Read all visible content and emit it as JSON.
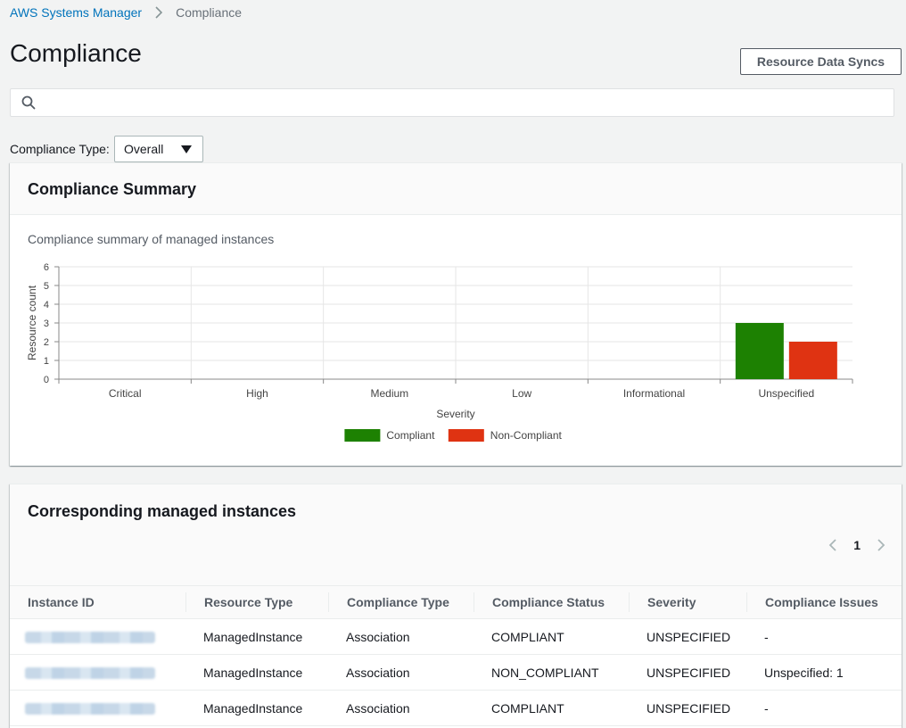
{
  "breadcrumb": {
    "root": "AWS Systems Manager",
    "current": "Compliance"
  },
  "page": {
    "title": "Compliance",
    "resource_data_syncs_label": "Resource Data Syncs"
  },
  "search": {
    "placeholder": "",
    "value": ""
  },
  "filter": {
    "label": "Compliance Type:",
    "selected": "Overall"
  },
  "summary": {
    "title": "Compliance Summary",
    "caption": "Compliance summary of managed instances"
  },
  "chart_data": {
    "type": "bar",
    "title": "",
    "xlabel": "Severity",
    "ylabel": "Resource count",
    "ylim": [
      0,
      6
    ],
    "yticks": [
      0,
      1,
      2,
      3,
      4,
      5,
      6
    ],
    "categories": [
      "Critical",
      "High",
      "Medium",
      "Low",
      "Informational",
      "Unspecified"
    ],
    "series": [
      {
        "name": "Compliant",
        "color": "#1d8102",
        "values": [
          0,
          0,
          0,
          0,
          0,
          3
        ]
      },
      {
        "name": "Non-Compliant",
        "color": "#df3312",
        "values": [
          0,
          0,
          0,
          0,
          0,
          2
        ]
      }
    ],
    "grid": true,
    "legend_position": "bottom-center"
  },
  "instances": {
    "title": "Corresponding managed instances",
    "page": "1",
    "columns": [
      "Instance ID",
      "Resource Type",
      "Compliance Type",
      "Compliance Status",
      "Severity",
      "Compliance Issues"
    ],
    "rows": [
      {
        "resource_type": "ManagedInstance",
        "compliance_type": "Association",
        "status": "COMPLIANT",
        "severity": "UNSPECIFIED",
        "issues": "-"
      },
      {
        "resource_type": "ManagedInstance",
        "compliance_type": "Association",
        "status": "NON_COMPLIANT",
        "severity": "UNSPECIFIED",
        "issues": "Unspecified: 1"
      },
      {
        "resource_type": "ManagedInstance",
        "compliance_type": "Association",
        "status": "COMPLIANT",
        "severity": "UNSPECIFIED",
        "issues": "-"
      }
    ]
  },
  "colors": {
    "link": "#0073bb",
    "compliant": "#1d8102",
    "non_compliant": "#df3312"
  }
}
